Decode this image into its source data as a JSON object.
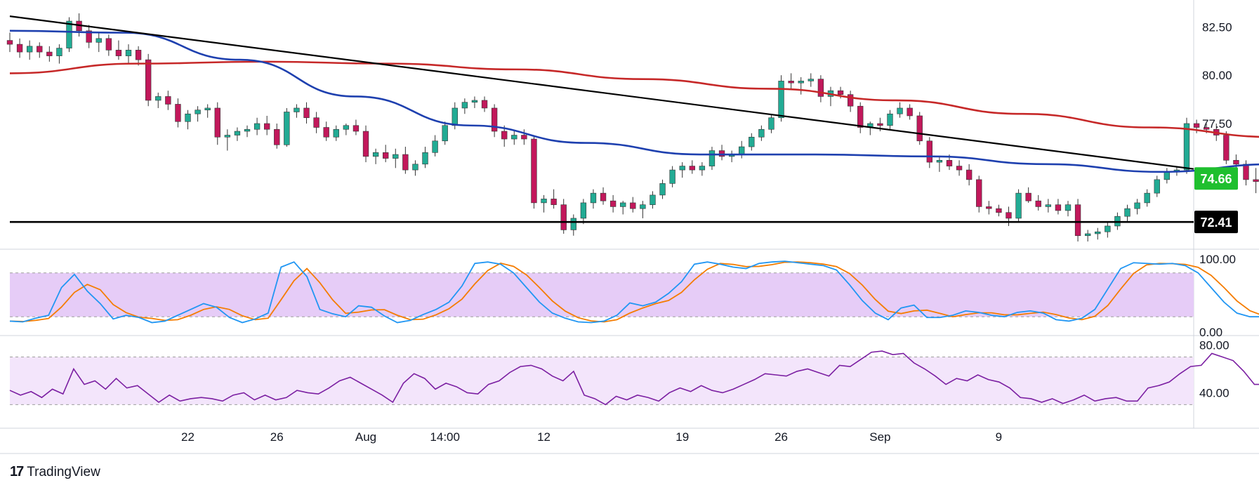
{
  "branding": {
    "logo_icon": "tradingview-logo-icon",
    "name": "TradingView"
  },
  "colors": {
    "up": "#22ab94",
    "down": "#c2185b",
    "ma_fast": "#1e40af",
    "ma_slow": "#c62828",
    "trendline": "#000000",
    "stoch_k": "#2196f3",
    "stoch_d": "#f57c00",
    "stoch_band": "#e6ccf7",
    "rsi_line": "#7b1fa2",
    "rsi_band": "#f3e5fb",
    "price_badge": "#1fbf2f"
  },
  "chart_data": {
    "type": "candlestick",
    "title": "",
    "xlabel": "",
    "ylabel": "",
    "x_tick_labels": [
      "22",
      "26",
      "Aug",
      "14:00",
      "12",
      "19",
      "26",
      "Sep",
      "9"
    ],
    "x_tick_bars": [
      18,
      27,
      36,
      44,
      54,
      68,
      78,
      88,
      100
    ],
    "bars_shown": 120,
    "price_panel": {
      "ylim": [
        71.0,
        83.6
      ],
      "y_ticks": [
        "82.50",
        "80.00",
        "77.50"
      ],
      "last_price_label": "74.66",
      "support_label": "72.41",
      "support_level": 72.41,
      "trendline": {
        "start": [
          0,
          83.05
        ],
        "end": [
          118,
          75.15
        ]
      },
      "candles": [
        [
          81.8,
          82.2,
          81.2,
          81.6
        ],
        [
          81.6,
          81.9,
          80.9,
          81.2
        ],
        [
          81.2,
          81.8,
          80.8,
          81.5
        ],
        [
          81.5,
          81.7,
          80.9,
          81.2
        ],
        [
          81.2,
          81.5,
          80.7,
          81.0
        ],
        [
          81.0,
          81.6,
          80.6,
          81.4
        ],
        [
          81.4,
          83.0,
          81.2,
          82.8
        ],
        [
          82.8,
          83.2,
          82.0,
          82.3
        ],
        [
          82.3,
          82.6,
          81.4,
          81.7
        ],
        [
          81.7,
          82.2,
          81.2,
          81.9
        ],
        [
          81.9,
          82.1,
          81.0,
          81.3
        ],
        [
          81.3,
          81.8,
          80.8,
          81.0
        ],
        [
          81.0,
          81.6,
          80.6,
          81.3
        ],
        [
          81.3,
          81.5,
          80.5,
          80.8
        ],
        [
          80.8,
          81.1,
          78.4,
          78.7
        ],
        [
          78.7,
          79.1,
          78.3,
          78.9
        ],
        [
          78.9,
          79.2,
          78.2,
          78.5
        ],
        [
          78.5,
          78.8,
          77.3,
          77.6
        ],
        [
          77.6,
          78.2,
          77.2,
          78.0
        ],
        [
          78.0,
          78.4,
          77.6,
          78.2
        ],
        [
          78.2,
          78.5,
          77.8,
          78.3
        ],
        [
          78.3,
          78.6,
          76.4,
          76.8
        ],
        [
          76.8,
          77.2,
          76.1,
          76.9
        ],
        [
          76.9,
          77.3,
          76.6,
          77.1
        ],
        [
          77.1,
          77.4,
          76.8,
          77.2
        ],
        [
          77.2,
          77.8,
          76.9,
          77.5
        ],
        [
          77.5,
          77.9,
          76.9,
          77.2
        ],
        [
          77.2,
          77.5,
          76.2,
          76.4
        ],
        [
          76.4,
          78.3,
          76.3,
          78.1
        ],
        [
          78.1,
          78.5,
          77.8,
          78.3
        ],
        [
          78.3,
          78.6,
          77.5,
          77.8
        ],
        [
          77.8,
          78.1,
          77.0,
          77.3
        ],
        [
          77.3,
          77.6,
          76.6,
          76.8
        ],
        [
          76.8,
          77.4,
          76.6,
          77.2
        ],
        [
          77.2,
          77.5,
          76.9,
          77.4
        ],
        [
          77.4,
          77.7,
          76.9,
          77.1
        ],
        [
          77.1,
          77.4,
          75.5,
          75.8
        ],
        [
          75.8,
          76.2,
          75.4,
          76.0
        ],
        [
          76.0,
          76.4,
          75.5,
          75.7
        ],
        [
          75.7,
          76.2,
          75.2,
          75.9
        ],
        [
          75.9,
          76.3,
          74.9,
          75.1
        ],
        [
          75.1,
          75.6,
          74.8,
          75.4
        ],
        [
          75.4,
          76.3,
          75.2,
          76.0
        ],
        [
          76.0,
          76.9,
          75.8,
          76.6
        ],
        [
          76.6,
          77.6,
          76.4,
          77.4
        ],
        [
          77.4,
          78.6,
          77.2,
          78.3
        ],
        [
          78.3,
          78.8,
          78.0,
          78.6
        ],
        [
          78.6,
          78.9,
          78.3,
          78.7
        ],
        [
          78.7,
          78.9,
          78.1,
          78.3
        ],
        [
          78.3,
          78.5,
          76.8,
          77.1
        ],
        [
          77.1,
          77.4,
          76.3,
          76.7
        ],
        [
          76.7,
          77.1,
          76.4,
          76.9
        ],
        [
          76.9,
          77.2,
          76.4,
          76.7
        ],
        [
          76.7,
          76.9,
          73.1,
          73.4
        ],
        [
          73.4,
          73.8,
          72.9,
          73.6
        ],
        [
          73.6,
          74.1,
          73.1,
          73.3
        ],
        [
          73.3,
          73.6,
          71.8,
          72.0
        ],
        [
          72.0,
          72.8,
          71.7,
          72.6
        ],
        [
          72.6,
          73.6,
          72.3,
          73.4
        ],
        [
          73.4,
          74.1,
          73.1,
          73.9
        ],
        [
          73.9,
          74.2,
          73.3,
          73.5
        ],
        [
          73.5,
          73.8,
          72.9,
          73.2
        ],
        [
          73.2,
          73.5,
          72.8,
          73.4
        ],
        [
          73.4,
          73.7,
          72.9,
          73.1
        ],
        [
          73.1,
          73.5,
          72.6,
          73.3
        ],
        [
          73.3,
          74.0,
          73.1,
          73.8
        ],
        [
          73.8,
          74.6,
          73.6,
          74.4
        ],
        [
          74.4,
          75.3,
          74.2,
          75.1
        ],
        [
          75.1,
          75.5,
          74.7,
          75.3
        ],
        [
          75.3,
          75.6,
          74.9,
          75.1
        ],
        [
          75.1,
          75.5,
          74.8,
          75.3
        ],
        [
          75.3,
          76.3,
          75.1,
          76.1
        ],
        [
          76.1,
          76.4,
          75.6,
          75.8
        ],
        [
          75.8,
          76.1,
          75.5,
          75.9
        ],
        [
          75.9,
          76.6,
          75.7,
          76.3
        ],
        [
          76.3,
          77.0,
          76.1,
          76.8
        ],
        [
          76.8,
          77.4,
          76.6,
          77.2
        ],
        [
          77.2,
          78.0,
          77.0,
          77.8
        ],
        [
          77.8,
          80.0,
          77.6,
          79.7
        ],
        [
          79.7,
          80.1,
          79.3,
          79.6
        ],
        [
          79.6,
          79.9,
          79.0,
          79.7
        ],
        [
          79.7,
          80.1,
          79.4,
          79.8
        ],
        [
          79.8,
          80.0,
          78.6,
          78.9
        ],
        [
          78.9,
          79.4,
          78.4,
          79.2
        ],
        [
          79.2,
          79.4,
          78.8,
          79.0
        ],
        [
          79.0,
          79.2,
          78.1,
          78.4
        ],
        [
          78.4,
          78.6,
          77.0,
          77.3
        ],
        [
          77.3,
          77.6,
          76.9,
          77.5
        ],
        [
          77.5,
          77.8,
          77.1,
          77.4
        ],
        [
          77.4,
          78.2,
          77.2,
          78.0
        ],
        [
          78.0,
          78.6,
          77.8,
          78.3
        ],
        [
          78.3,
          78.5,
          77.7,
          77.9
        ],
        [
          77.9,
          78.1,
          76.4,
          76.6
        ],
        [
          76.6,
          76.8,
          75.2,
          75.5
        ],
        [
          75.5,
          75.8,
          75.0,
          75.6
        ],
        [
          75.6,
          75.9,
          75.1,
          75.3
        ],
        [
          75.3,
          75.6,
          74.8,
          75.1
        ],
        [
          75.1,
          75.4,
          74.3,
          74.6
        ],
        [
          74.6,
          74.8,
          72.9,
          73.2
        ],
        [
          73.2,
          73.5,
          72.8,
          73.1
        ],
        [
          73.1,
          73.3,
          72.7,
          72.9
        ],
        [
          72.9,
          73.2,
          72.2,
          72.6
        ],
        [
          72.6,
          74.1,
          72.4,
          73.9
        ],
        [
          73.9,
          74.2,
          73.4,
          73.5
        ],
        [
          73.5,
          73.8,
          73.0,
          73.2
        ],
        [
          73.2,
          73.6,
          72.9,
          73.3
        ],
        [
          73.3,
          73.6,
          72.8,
          73.0
        ],
        [
          73.0,
          73.5,
          72.7,
          73.3
        ],
        [
          73.3,
          73.6,
          71.4,
          71.7
        ],
        [
          71.7,
          72.0,
          71.4,
          71.8
        ],
        [
          71.8,
          72.1,
          71.5,
          71.9
        ],
        [
          71.9,
          72.4,
          71.6,
          72.2
        ],
        [
          72.2,
          72.9,
          72.0,
          72.7
        ],
        [
          72.7,
          73.3,
          72.4,
          73.1
        ],
        [
          73.1,
          73.6,
          72.8,
          73.4
        ],
        [
          73.4,
          74.1,
          73.2,
          73.9
        ]
      ],
      "candles_tail": [
        [
          73.9,
          74.8,
          73.7,
          74.6
        ],
        [
          74.6,
          75.2,
          74.4,
          75.0
        ],
        [
          75.0,
          75.3,
          74.8,
          75.1
        ],
        [
          75.1,
          77.8,
          74.9,
          77.5
        ],
        [
          77.5,
          77.7,
          77.0,
          77.3
        ],
        [
          77.3,
          77.5,
          77.0,
          77.2
        ],
        [
          77.2,
          77.5,
          76.6,
          76.9
        ],
        [
          76.9,
          77.1,
          75.4,
          75.6
        ],
        [
          75.6,
          75.9,
          75.2,
          75.4
        ],
        [
          75.4,
          75.6,
          74.3,
          74.6
        ],
        [
          74.6,
          75.2,
          73.9,
          74.5
        ],
        [
          74.5,
          74.9,
          74.2,
          74.7
        ],
        [
          74.7,
          74.9,
          74.5,
          74.66
        ]
      ],
      "ma_fast": [
        82.3,
        82.2,
        80.8,
        78.9,
        77.4,
        76.5,
        75.9,
        75.9,
        75.8,
        75.4,
        75.0,
        75.4
      ],
      "ma_slow": [
        80.1,
        80.6,
        80.7,
        80.6,
        80.3,
        79.8,
        79.3,
        78.7,
        78.0,
        77.3,
        76.8
      ]
    },
    "stoch_panel": {
      "ylim": [
        0,
        100
      ],
      "y_ticks": [
        "100.00",
        "0.00"
      ],
      "upper_band": 80,
      "lower_band": 20,
      "k_values": [
        14,
        13,
        18,
        22,
        60,
        78,
        55,
        38,
        17,
        22,
        19,
        12,
        14,
        22,
        30,
        38,
        33,
        19,
        12,
        17,
        25,
        88,
        95,
        75,
        30,
        24,
        20,
        35,
        33,
        21,
        12,
        15,
        23,
        30,
        40,
        62,
        93,
        95,
        92,
        80,
        60,
        40,
        25,
        18,
        13,
        12,
        14,
        22,
        39,
        35,
        40,
        52,
        68,
        92,
        95,
        92,
        88,
        86,
        93,
        95,
        96,
        94,
        92,
        90,
        84,
        64,
        42,
        25,
        16,
        32,
        36,
        19,
        19,
        22,
        28,
        26,
        22,
        20,
        26,
        28,
        25,
        16,
        14,
        18,
        30,
        58,
        86,
        94,
        93,
        92,
        93,
        90,
        80,
        60,
        40,
        25,
        20,
        20,
        22
      ]
    },
    "rsi_panel": {
      "ylim": [
        22,
        88
      ],
      "y_ticks": [
        "80.00",
        "40.00"
      ],
      "upper_band": 70,
      "lower_band": 30,
      "values": [
        42,
        38,
        41,
        36,
        43,
        39,
        60,
        47,
        50,
        43,
        52,
        44,
        46,
        39,
        32,
        38,
        33,
        35,
        36,
        35,
        33,
        38,
        40,
        34,
        38,
        34,
        36,
        42,
        40,
        39,
        44,
        50,
        53,
        48,
        43,
        38,
        32,
        48,
        56,
        52,
        43,
        48,
        45,
        40,
        39,
        47,
        50,
        57,
        62,
        63,
        60,
        54,
        50,
        58,
        38,
        35,
        30,
        37,
        34,
        38,
        36,
        33,
        40,
        44,
        41,
        46,
        42,
        40,
        43,
        47,
        51,
        56,
        55,
        54,
        58,
        60,
        57,
        54,
        63,
        62,
        68,
        74,
        75,
        72,
        73,
        65,
        60,
        54,
        47,
        52,
        50,
        55,
        51,
        49,
        44,
        36,
        35,
        32,
        35,
        31,
        34,
        38,
        33,
        35,
        36,
        33,
        33,
        44,
        46,
        49,
        56,
        62,
        63,
        73,
        70,
        67,
        58,
        47,
        47,
        46
      ]
    }
  }
}
